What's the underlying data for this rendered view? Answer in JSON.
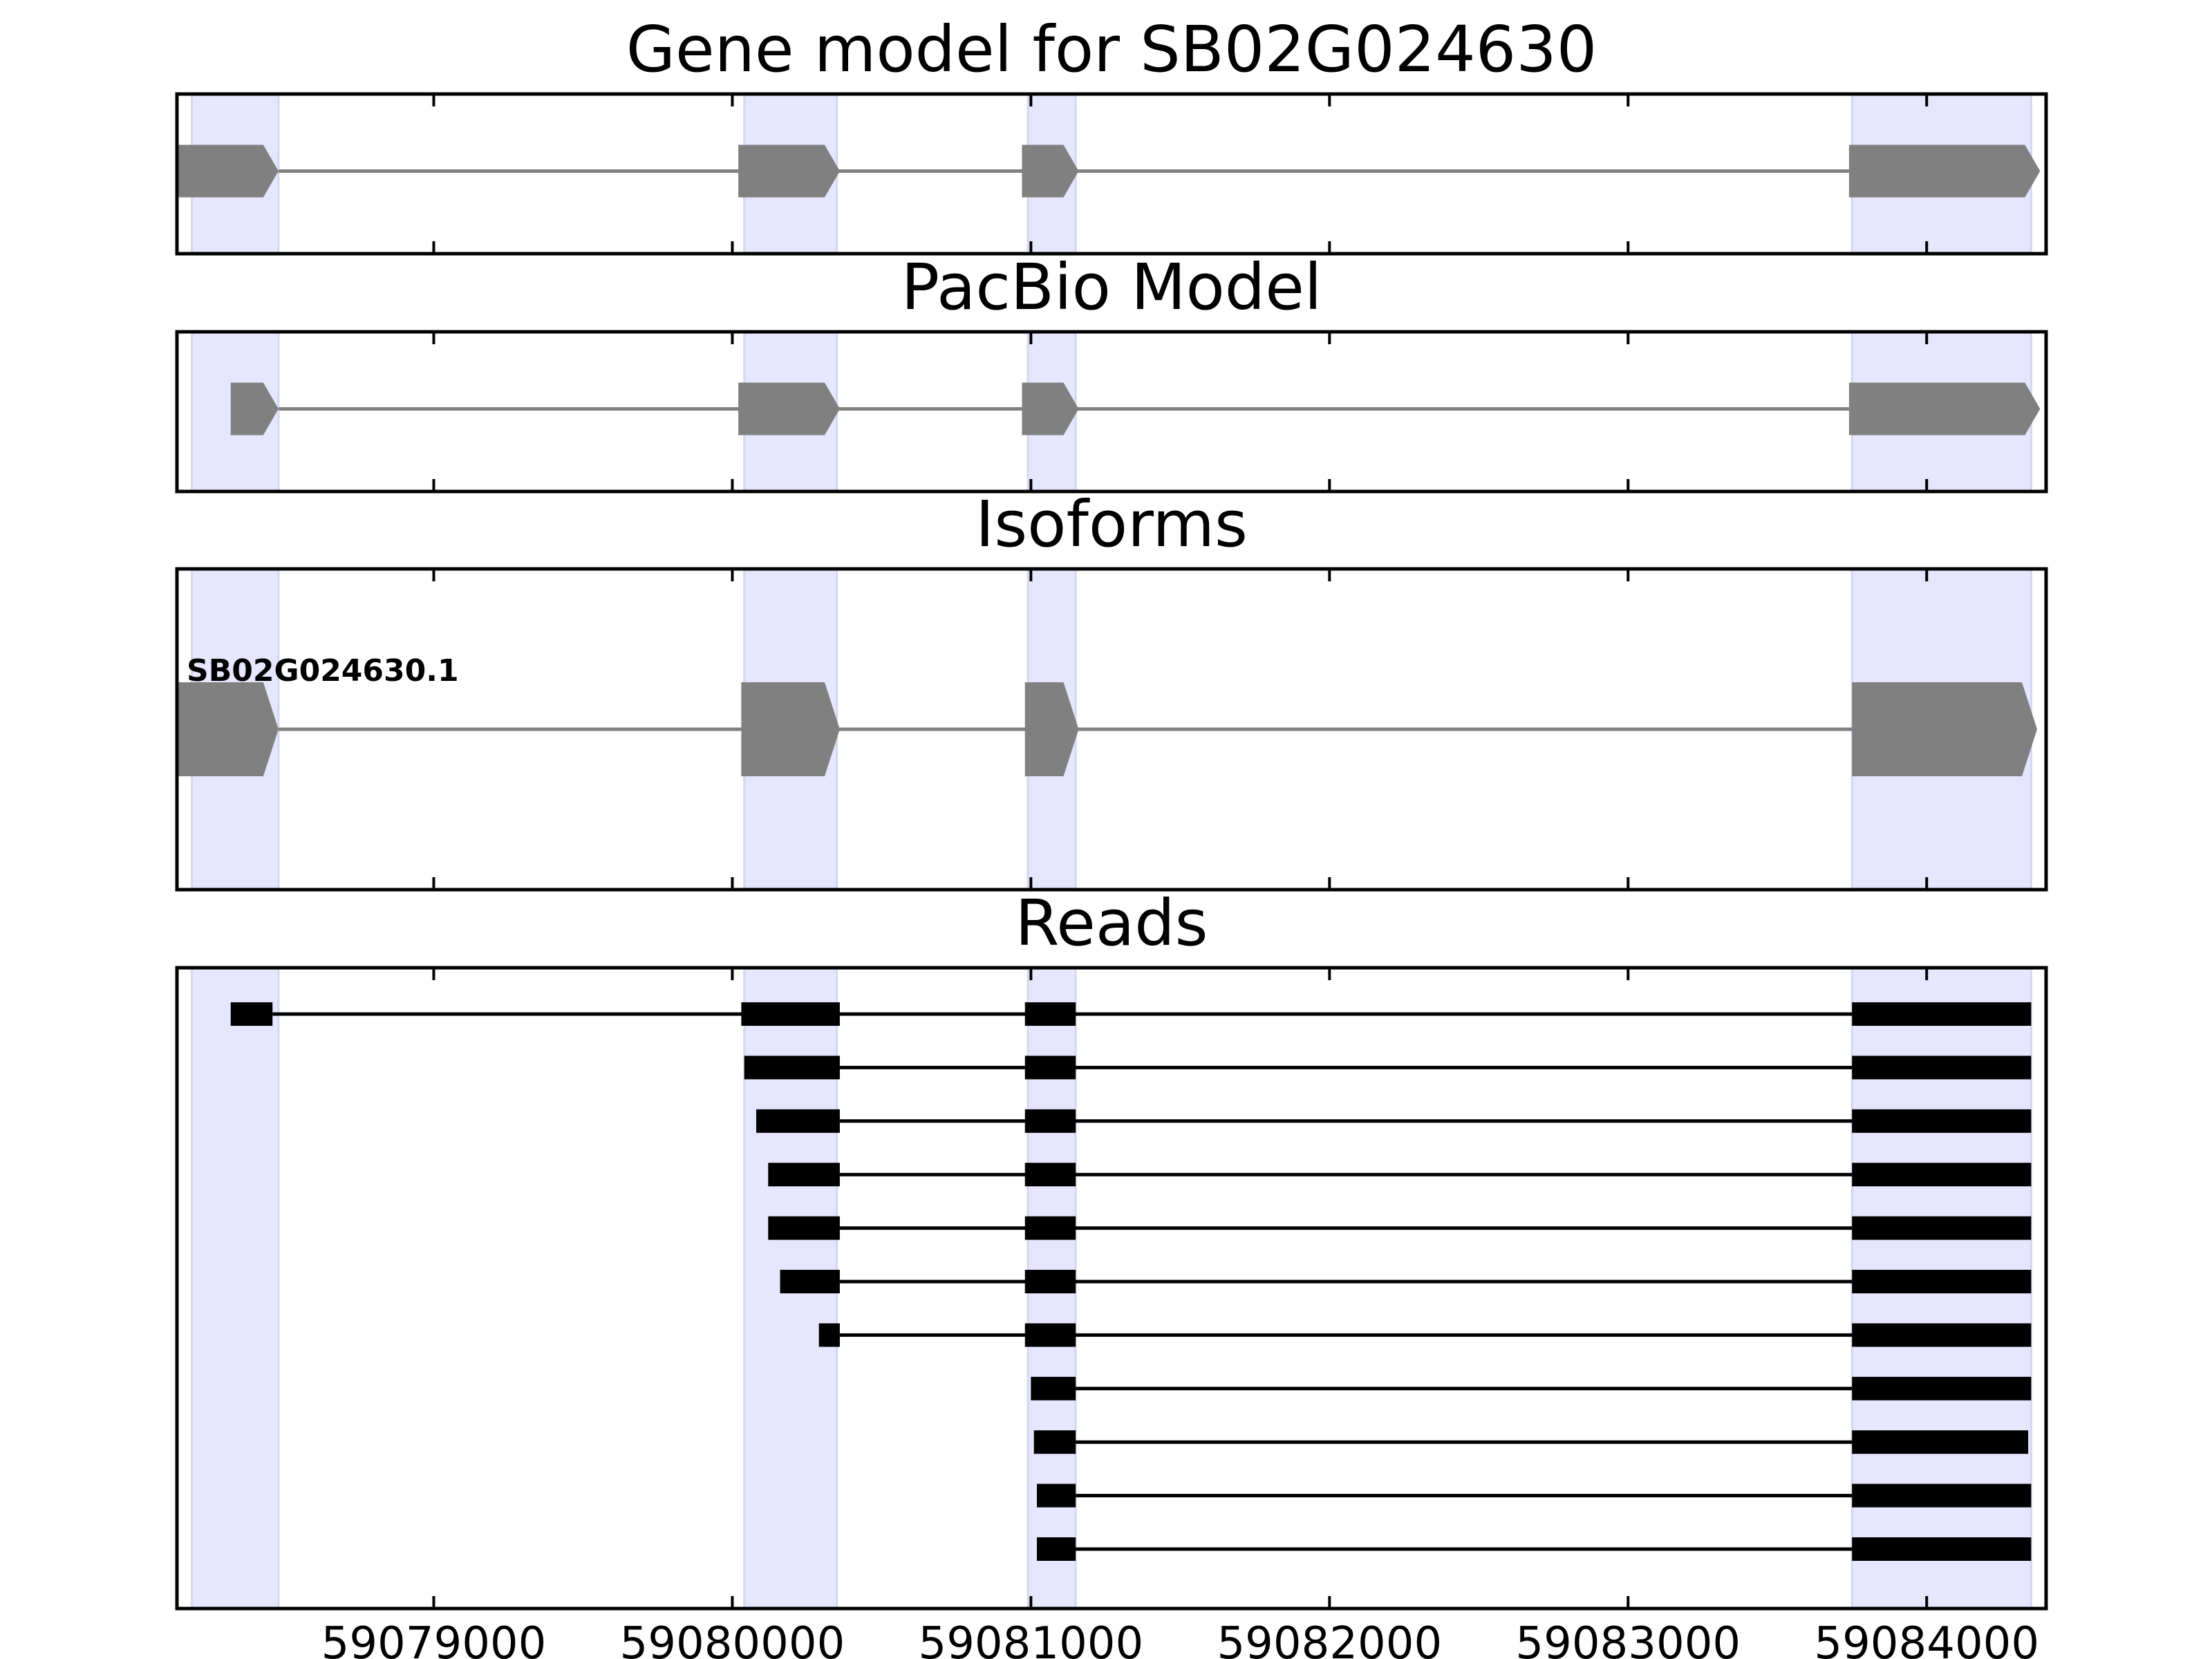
{
  "chart_data": {
    "type": "gene-structure",
    "x_domain": [
      59078140,
      59084400
    ],
    "x_ticks": [
      59079000,
      59080000,
      59081000,
      59082000,
      59083000,
      59084000
    ],
    "exon_regions": [
      [
        59078190,
        59078480
      ],
      [
        59080040,
        59080350
      ],
      [
        59080990,
        59081150
      ],
      [
        59083750,
        59084350
      ]
    ],
    "colors": {
      "highlight": "#e6e6ff",
      "model": "#808080",
      "read": "#000000",
      "frame": "#000000"
    },
    "panels": [
      {
        "title": "Gene model for SB02G024630",
        "kind": "model",
        "strand": "+",
        "exons": [
          [
            59078140,
            59078480
          ],
          [
            59080020,
            59080360
          ],
          [
            59080970,
            59081160
          ],
          [
            59083740,
            59084380
          ]
        ]
      },
      {
        "title": "PacBio Model",
        "kind": "model",
        "strand": "+",
        "exons": [
          [
            59078320,
            59078480
          ],
          [
            59080020,
            59080360
          ],
          [
            59080970,
            59081160
          ],
          [
            59083740,
            59084380
          ]
        ]
      },
      {
        "title": "Isoforms",
        "kind": "model",
        "strand": "+",
        "isoform_label": "SB02G024630.1",
        "exons": [
          [
            59078140,
            59078480
          ],
          [
            59080030,
            59080360
          ],
          [
            59080980,
            59081160
          ],
          [
            59083750,
            59084370
          ]
        ]
      },
      {
        "title": "Reads",
        "kind": "reads",
        "reads": [
          [
            [
              59078320,
              59078460
            ],
            [
              59080030,
              59080360
            ],
            [
              59080980,
              59081150
            ],
            [
              59083750,
              59084350
            ]
          ],
          [
            [
              59080040,
              59080360
            ],
            [
              59080980,
              59081150
            ],
            [
              59083750,
              59084350
            ]
          ],
          [
            [
              59080080,
              59080360
            ],
            [
              59080980,
              59081150
            ],
            [
              59083750,
              59084350
            ]
          ],
          [
            [
              59080120,
              59080360
            ],
            [
              59080980,
              59081150
            ],
            [
              59083750,
              59084350
            ]
          ],
          [
            [
              59080120,
              59080360
            ],
            [
              59080980,
              59081150
            ],
            [
              59083750,
              59084350
            ]
          ],
          [
            [
              59080160,
              59080360
            ],
            [
              59080980,
              59081150
            ],
            [
              59083750,
              59084350
            ]
          ],
          [
            [
              59080290,
              59080360
            ],
            [
              59080980,
              59081150
            ],
            [
              59083750,
              59084350
            ]
          ],
          [
            [
              59081000,
              59081150
            ],
            [
              59083750,
              59084350
            ]
          ],
          [
            [
              59081010,
              59081150
            ],
            [
              59083750,
              59084340
            ]
          ],
          [
            [
              59081020,
              59081150
            ],
            [
              59083750,
              59084350
            ]
          ],
          [
            [
              59081020,
              59081150
            ],
            [
              59083750,
              59084350
            ]
          ]
        ]
      }
    ]
  }
}
